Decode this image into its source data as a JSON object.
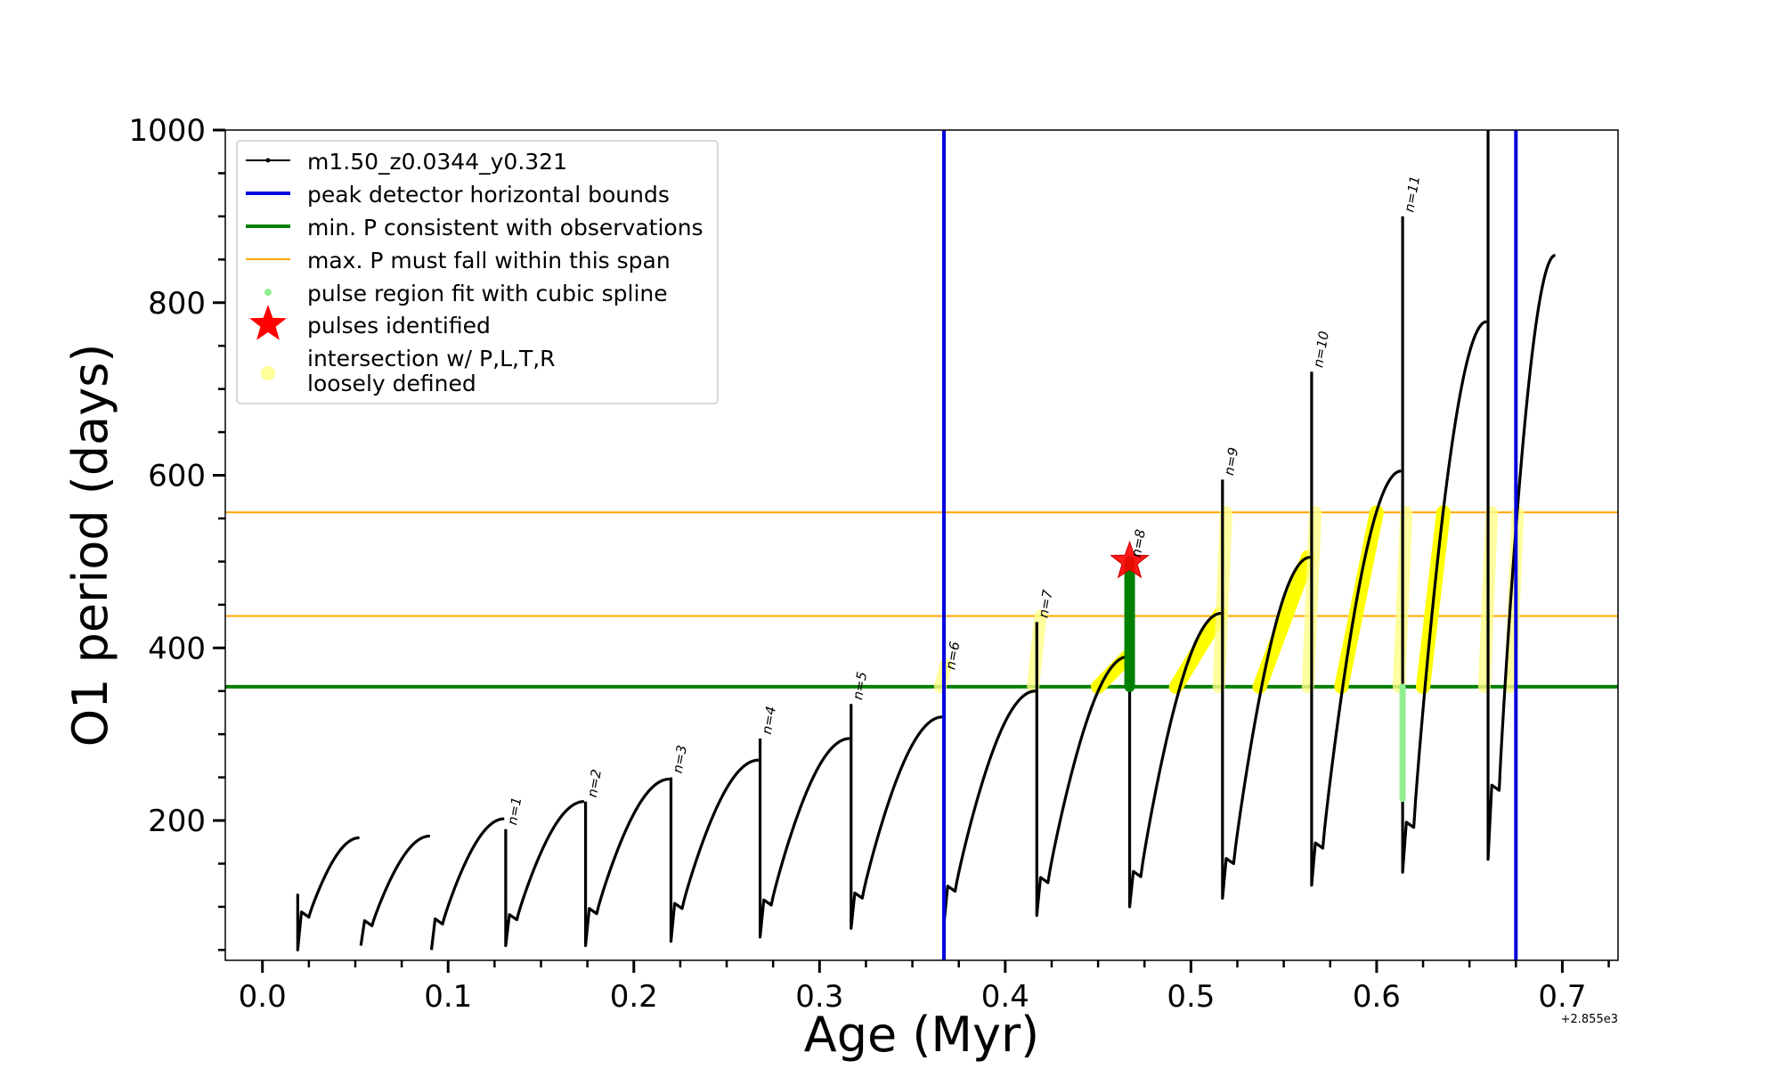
{
  "chart_data": {
    "type": "line",
    "xlabel": "Age (Myr)",
    "ylabel": "O1 period (days)",
    "x_offset_label": "+2.855e3",
    "xlim": [
      -0.02,
      0.73
    ],
    "ylim": [
      38,
      1000
    ],
    "x_ticks": [
      0.0,
      0.1,
      0.2,
      0.3,
      0.4,
      0.5,
      0.6,
      0.7
    ],
    "x_tick_labels": [
      "0.0",
      "0.1",
      "0.2",
      "0.3",
      "0.4",
      "0.5",
      "0.6",
      "0.7"
    ],
    "y_ticks": [
      200,
      400,
      600,
      800,
      1000
    ],
    "y_tick_labels": [
      "200",
      "400",
      "600",
      "800",
      "1000"
    ],
    "grid": false,
    "legend_position": "top-left",
    "legend": [
      {
        "label": "m1.50_z0.0344_y0.321",
        "marker": "line-dot",
        "color": "#000000"
      },
      {
        "label": "peak detector horizontal bounds",
        "marker": "line",
        "color": "#0000dd"
      },
      {
        "label": "min. P consistent with observations",
        "marker": "line",
        "color": "#008000"
      },
      {
        "label": "max. P must fall within this span",
        "marker": "thin-line",
        "color": "#ffa500"
      },
      {
        "label": "pulse region fit with cubic spline",
        "marker": "dot",
        "color": "#90ee90"
      },
      {
        "label": "pulses identified",
        "marker": "star",
        "color": "#ff0000"
      },
      {
        "label": "intersection w/ P,L,T,R",
        "label2": "loosely defined",
        "marker": "dot-large",
        "color": "#ffff99"
      }
    ],
    "vertical_lines": [
      {
        "x": 0.367,
        "color": "#0000dd",
        "series": "peak detector horizontal bounds"
      },
      {
        "x": 0.675,
        "color": "#0000dd",
        "series": "peak detector horizontal bounds"
      }
    ],
    "horizontal_lines": [
      {
        "y": 355,
        "color": "#008000",
        "series": "min. P consistent with observations"
      },
      {
        "y": 437,
        "color": "#ffa500",
        "series": "max. P must fall within this span"
      },
      {
        "y": 557,
        "color": "#ffa500",
        "series": "max. P must fall within this span"
      }
    ],
    "pulses": [
      {
        "start": 0.019,
        "end": 0.053,
        "min": 88,
        "max": 180,
        "spike_low": 50,
        "spike_high": 115
      },
      {
        "start": 0.053,
        "end": 0.091,
        "min": 78,
        "max": 182,
        "spike_low": 55
      },
      {
        "start": 0.091,
        "end": 0.131,
        "min": 80,
        "max": 202,
        "spike_low": 50
      },
      {
        "start": 0.131,
        "end": 0.174,
        "min": 85,
        "max": 222,
        "spike_low": 55,
        "spike_high": 190,
        "label": "n=1"
      },
      {
        "start": 0.174,
        "end": 0.22,
        "min": 92,
        "max": 248,
        "spike_low": 55,
        "spike_high": 222,
        "label": "n=2"
      },
      {
        "start": 0.22,
        "end": 0.268,
        "min": 98,
        "max": 270,
        "spike_low": 60,
        "spike_high": 250,
        "label": "n=3"
      },
      {
        "start": 0.268,
        "end": 0.317,
        "min": 102,
        "max": 295,
        "spike_low": 65,
        "spike_high": 295,
        "label": "n=4"
      },
      {
        "start": 0.317,
        "end": 0.367,
        "min": 110,
        "max": 320,
        "spike_low": 75,
        "spike_high": 335,
        "label": "n=5"
      },
      {
        "start": 0.367,
        "end": 0.417,
        "min": 118,
        "max": 350,
        "spike_low": 80,
        "spike_high": 370,
        "label": "n=6"
      },
      {
        "start": 0.417,
        "end": 0.467,
        "min": 128,
        "max": 390,
        "spike_low": 90,
        "spike_high": 430,
        "label": "n=7"
      },
      {
        "start": 0.467,
        "end": 0.517,
        "min": 135,
        "max": 440,
        "spike_low": 100,
        "spike_high": 500,
        "label": "n=8"
      },
      {
        "start": 0.517,
        "end": 0.565,
        "min": 150,
        "max": 505,
        "spike_low": 110,
        "spike_high": 595,
        "label": "n=9"
      },
      {
        "start": 0.565,
        "end": 0.614,
        "min": 168,
        "max": 605,
        "spike_low": 125,
        "spike_high": 720,
        "label": "n=10"
      },
      {
        "start": 0.614,
        "end": 0.66,
        "min": 192,
        "max": 778,
        "spike_low": 140,
        "spike_high": 900,
        "label": "n=11"
      },
      {
        "start": 0.66,
        "end": 0.697,
        "min": 235,
        "max": 855,
        "spike_low": 155,
        "spike_high": 1000
      }
    ],
    "pulses_identified": [
      {
        "x": 0.467,
        "y": 500
      }
    ],
    "pulse_region_spline": [
      {
        "x": 0.467,
        "y_from": 355,
        "y_to": 500
      },
      {
        "x": 0.614,
        "y_from": 225,
        "y_to": 355
      }
    ],
    "intersections": [
      {
        "x_from": 0.365,
        "x_to": 0.368,
        "y_from": 355,
        "y_to": 380
      },
      {
        "x_from": 0.415,
        "x_to": 0.419,
        "y_from": 355,
        "y_to": 437
      },
      {
        "x_from": 0.45,
        "x_to": 0.466,
        "y_from": 355,
        "y_to": 390
      },
      {
        "x_from": 0.492,
        "x_to": 0.516,
        "y_from": 355,
        "y_to": 440
      },
      {
        "x_from": 0.515,
        "x_to": 0.519,
        "y_from": 355,
        "y_to": 557
      },
      {
        "x_from": 0.537,
        "x_to": 0.563,
        "y_from": 355,
        "y_to": 505
      },
      {
        "x_from": 0.563,
        "x_to": 0.567,
        "y_from": 355,
        "y_to": 557
      },
      {
        "x_from": 0.581,
        "x_to": 0.6,
        "y_from": 355,
        "y_to": 557
      },
      {
        "x_from": 0.612,
        "x_to": 0.616,
        "y_from": 355,
        "y_to": 557
      },
      {
        "x_from": 0.625,
        "x_to": 0.636,
        "y_from": 355,
        "y_to": 557
      },
      {
        "x_from": 0.658,
        "x_to": 0.662,
        "y_from": 355,
        "y_to": 557
      },
      {
        "x_from": 0.672,
        "x_to": 0.676,
        "y_from": 355,
        "y_to": 557
      }
    ]
  }
}
